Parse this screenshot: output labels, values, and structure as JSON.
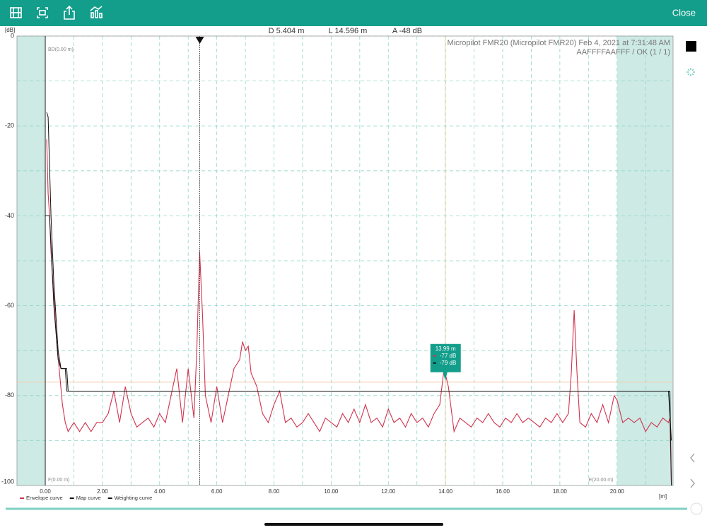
{
  "toolbar": {
    "close": "Close"
  },
  "readouts": [
    {
      "value": 5.404,
      "label": "D 5.404 m"
    },
    {
      "value": 14.596,
      "label": "L 14.596 m"
    },
    {
      "value": -48,
      "label": "A -48 dB"
    }
  ],
  "chart_data": {
    "type": "line",
    "y_unit": "[dB]",
    "x_unit": "[m]",
    "info": [
      "Micropilot FMR20 (Micropilot FMR20) Feb 4, 2021 at 7:31:48 AM",
      "AAFFFFAAFFF / OK (1 / 1)"
    ],
    "xlim": [
      -0.99,
      21.96
    ],
    "ylim": [
      -100,
      0
    ],
    "xticks": [
      {
        "value": 0,
        "label": "0.00"
      },
      {
        "value": 2,
        "label": "2.00"
      },
      {
        "value": 4,
        "label": "4.00"
      },
      {
        "value": 6,
        "label": "6.00"
      },
      {
        "value": 8,
        "label": "8.00"
      },
      {
        "value": 10,
        "label": "10.00"
      },
      {
        "value": 12,
        "label": "12.00"
      },
      {
        "value": 14,
        "label": "14.00"
      },
      {
        "value": 16,
        "label": "16.00"
      },
      {
        "value": 18,
        "label": "18.00"
      },
      {
        "value": 20,
        "label": "20.00"
      }
    ],
    "yticks": [
      -100,
      -80,
      -60,
      -40,
      -20,
      0
    ],
    "xgrid": [
      1,
      3,
      5,
      7,
      9,
      11,
      13,
      15,
      17,
      19,
      21
    ],
    "ygrid": [
      -90,
      -70,
      -50,
      -30,
      -10
    ],
    "grid": true,
    "shaded": [
      {
        "from": -0.99,
        "to": 0
      },
      {
        "from": 20,
        "to": 21.96
      }
    ],
    "markers": [
      {
        "x": 0,
        "label": "BD(0.00 m)",
        "position": "top"
      },
      {
        "x": 0,
        "label": "F(0.00 m)",
        "position": "bottom"
      },
      {
        "x": 20,
        "label": "E(20.00 m)",
        "position": "bottom"
      }
    ],
    "cursor": {
      "x": 5.404,
      "color": "#333333"
    },
    "threshold": {
      "y": -77,
      "color": "#f5c9a8"
    },
    "tooltip": {
      "x": 13.99,
      "label": "13.99 m",
      "color": "#129e8b",
      "entries": [
        {
          "value": -77,
          "label": "-77 dB",
          "color": "#d0334e"
        },
        {
          "value": -79,
          "label": "-79 dB",
          "color": "#111111"
        }
      ]
    },
    "series": [
      {
        "name": "Envelope curve",
        "color": "#d0334e",
        "x": [
          0.05,
          0.1,
          0.15,
          0.2,
          0.3,
          0.4,
          0.5,
          0.6,
          0.7,
          0.8,
          1.0,
          1.2,
          1.4,
          1.6,
          1.8,
          2.0,
          2.2,
          2.4,
          2.6,
          2.8,
          3.0,
          3.2,
          3.4,
          3.6,
          3.8,
          4.0,
          4.2,
          4.4,
          4.6,
          4.8,
          5.0,
          5.2,
          5.3,
          5.4,
          5.5,
          5.6,
          5.8,
          6.0,
          6.2,
          6.4,
          6.6,
          6.8,
          6.9,
          7.0,
          7.1,
          7.2,
          7.4,
          7.6,
          7.8,
          8.0,
          8.2,
          8.4,
          8.6,
          8.8,
          9.0,
          9.2,
          9.4,
          9.6,
          9.8,
          10.0,
          10.2,
          10.4,
          10.6,
          10.8,
          11.0,
          11.2,
          11.4,
          11.6,
          11.8,
          12.0,
          12.2,
          12.4,
          12.6,
          12.8,
          13.0,
          13.2,
          13.4,
          13.6,
          13.8,
          13.95,
          14.1,
          14.3,
          14.5,
          14.7,
          14.9,
          15.1,
          15.3,
          15.5,
          15.7,
          15.9,
          16.1,
          16.3,
          16.5,
          16.7,
          16.9,
          17.1,
          17.3,
          17.5,
          17.7,
          17.9,
          18.1,
          18.3,
          18.4,
          18.5,
          18.6,
          18.7,
          18.9,
          19.1,
          19.3,
          19.5,
          19.7,
          19.9,
          20.0,
          20.2,
          20.4,
          20.6,
          20.8,
          21.0,
          21.2,
          21.4,
          21.6,
          21.8,
          21.85,
          21.9
        ],
        "values": [
          -23,
          -35,
          -40,
          -48,
          -58,
          -68,
          -75,
          -82,
          -86,
          -88,
          -86,
          -88,
          -86,
          -88,
          -86,
          -86,
          -84,
          -79,
          -86,
          -78,
          -84,
          -87,
          -86,
          -85,
          -87,
          -84,
          -86,
          -80,
          -74,
          -86,
          -74,
          -85,
          -70,
          -48,
          -62,
          -80,
          -86,
          -78,
          -86,
          -80,
          -74,
          -72,
          -68,
          -70,
          -69,
          -75,
          -78,
          -84,
          -86,
          -82,
          -79,
          -86,
          -85,
          -87,
          -86,
          -84,
          -86,
          -88,
          -85,
          -86,
          -87,
          -84,
          -86,
          -83,
          -86,
          -82,
          -86,
          -85,
          -87,
          -83,
          -86,
          -85,
          -87,
          -84,
          -86,
          -85,
          -87,
          -84,
          -82,
          -74,
          -78,
          -88,
          -85,
          -86,
          -87,
          -85,
          -86,
          -84,
          -86,
          -87,
          -85,
          -86,
          -84,
          -86,
          -85,
          -86,
          -87,
          -85,
          -86,
          -84,
          -86,
          -84,
          -75,
          -61,
          -75,
          -86,
          -87,
          -84,
          -86,
          -82,
          -86,
          -80,
          -81,
          -86,
          -85,
          -86,
          -85,
          -88,
          -86,
          -87,
          -85,
          -86,
          -85,
          -100
        ]
      },
      {
        "name": "Map curve",
        "color": "#111111",
        "x": [
          0.05,
          0.1,
          0.2,
          0.3,
          0.45,
          0.5,
          0.55,
          0.7,
          0.75,
          21.8,
          21.9
        ],
        "values": [
          -17,
          -18,
          -40,
          -55,
          -70,
          -72,
          -74,
          -74,
          -79,
          -79,
          -90
        ]
      },
      {
        "name": "Weighting curve",
        "color": "#111111",
        "x": [
          0,
          0.15,
          0.3,
          0.45,
          0.55,
          0.75,
          0.8,
          21.85,
          21.9
        ],
        "values": [
          -40,
          -40,
          -60,
          -72,
          -74,
          -74,
          -79,
          -79,
          -100
        ]
      }
    ]
  }
}
